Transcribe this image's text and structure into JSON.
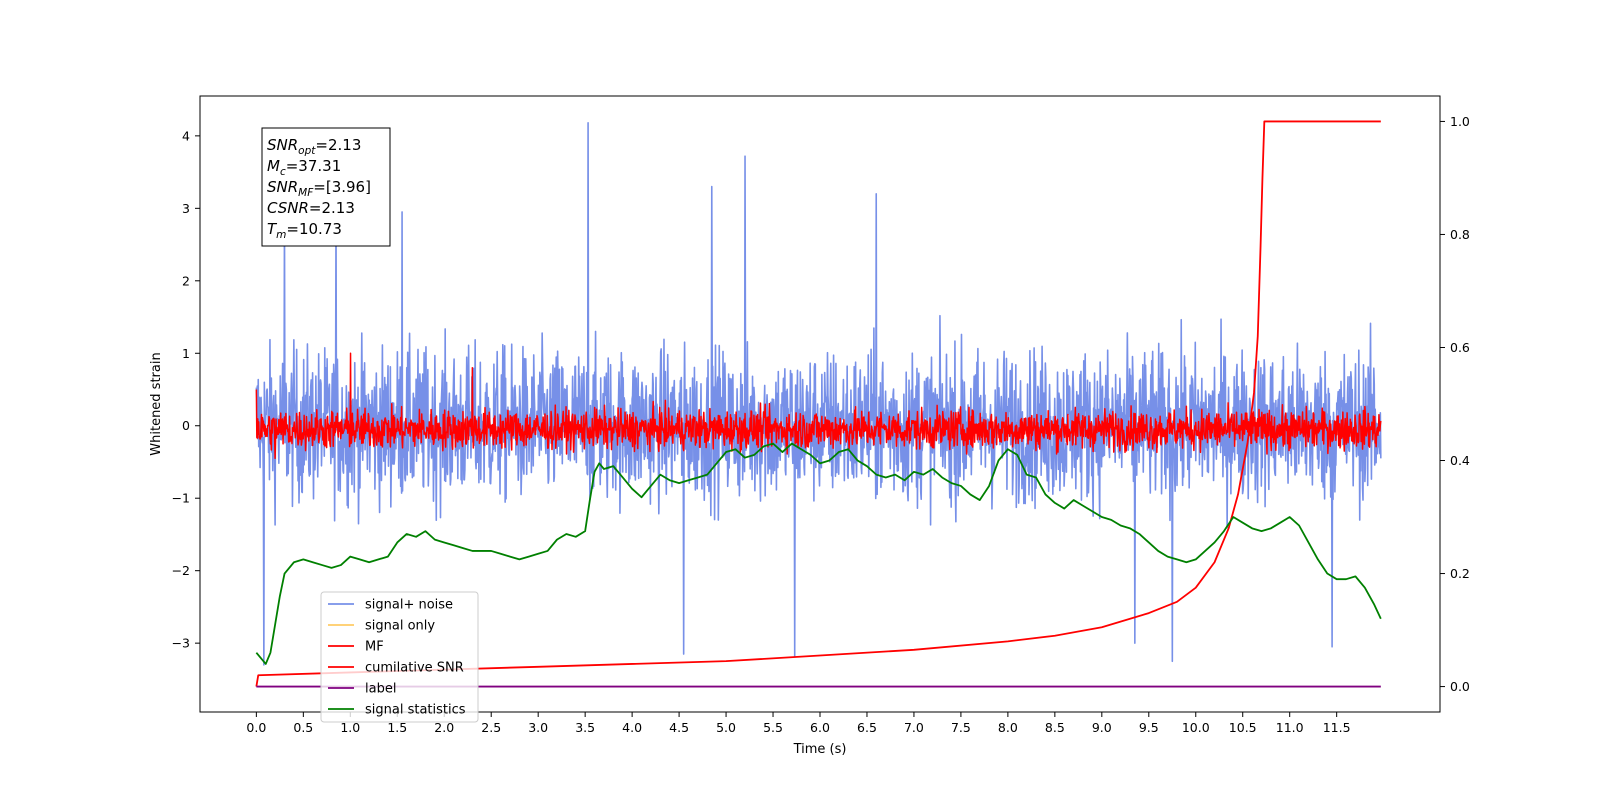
{
  "chart_data": {
    "type": "line",
    "title": "",
    "xlabel": "Time (s)",
    "ylabel": "Whitened strain",
    "y2label": "",
    "xlim": [
      -0.6,
      12.6
    ],
    "ylim": [
      -3.95,
      4.55
    ],
    "y2lim": [
      -0.045,
      1.045
    ],
    "x_ticks": [
      "0.0",
      "0.5",
      "1.0",
      "1.5",
      "2.0",
      "2.5",
      "3.0",
      "3.5",
      "4.0",
      "4.5",
      "5.0",
      "5.5",
      "6.0",
      "6.5",
      "7.0",
      "7.5",
      "8.0",
      "8.5",
      "9.0",
      "9.5",
      "10.0",
      "10.5",
      "11.0",
      "11.5"
    ],
    "y_ticks": [
      "-3",
      "-2",
      "-1",
      "0",
      "1",
      "2",
      "3",
      "4"
    ],
    "y2_ticks": [
      "0.0",
      "0.2",
      "0.4",
      "0.6",
      "0.8",
      "1.0"
    ],
    "grid": false,
    "legend_position": "lower-left",
    "annotation": {
      "lines": [
        {
          "main": "SNR",
          "sub": "opt",
          "rest": "=2.13"
        },
        {
          "main": "M",
          "sub": "c",
          "rest": "=37.31"
        },
        {
          "main": "SNR",
          "sub": "MF",
          "rest": "=[3.96]"
        },
        {
          "main": "CSNR",
          "sub": "",
          "rest": "=2.13"
        },
        {
          "main": "T",
          "sub": "m",
          "rest": "=10.73"
        }
      ]
    },
    "series": [
      {
        "name": "signal+ noise",
        "color": "#7790e8",
        "axis": "left",
        "kind": "noise",
        "center": 0.0,
        "spread": 0.85,
        "range": [
          -3.3,
          4.2
        ],
        "extremes": [
          {
            "x": 0.08,
            "y": -3.3
          },
          {
            "x": 0.3,
            "y": 2.9
          },
          {
            "x": 0.85,
            "y": 2.9
          },
          {
            "x": 1.55,
            "y": 2.95
          },
          {
            "x": 3.53,
            "y": 4.18
          },
          {
            "x": 4.55,
            "y": -3.15
          },
          {
            "x": 4.85,
            "y": 3.3
          },
          {
            "x": 5.2,
            "y": 3.72
          },
          {
            "x": 5.73,
            "y": -3.18
          },
          {
            "x": 6.6,
            "y": 3.2
          },
          {
            "x": 9.35,
            "y": -3.0
          },
          {
            "x": 9.75,
            "y": -3.25
          },
          {
            "x": 11.45,
            "y": -3.05
          }
        ]
      },
      {
        "name": "signal only",
        "color": "#ffcc66",
        "axis": "left",
        "kind": "flat",
        "points": []
      },
      {
        "name": "MF",
        "color": "#ff0000",
        "axis": "left",
        "kind": "noise",
        "center": -0.05,
        "spread": 0.22,
        "range": [
          -0.5,
          1.0
        ],
        "extremes": [
          {
            "x": 0.0,
            "y": 0.5
          },
          {
            "x": 0.2,
            "y": -0.45
          },
          {
            "x": 1.0,
            "y": 1.0
          },
          {
            "x": 2.3,
            "y": 0.8
          }
        ]
      },
      {
        "name": "cumilative SNR",
        "color": "#ff0000",
        "axis": "right",
        "kind": "curve",
        "points": [
          [
            0.0,
            0.0
          ],
          [
            0.02,
            0.02
          ],
          [
            1.0,
            0.025
          ],
          [
            2.0,
            0.03
          ],
          [
            3.0,
            0.035
          ],
          [
            4.0,
            0.04
          ],
          [
            5.0,
            0.045
          ],
          [
            6.0,
            0.055
          ],
          [
            7.0,
            0.065
          ],
          [
            8.0,
            0.08
          ],
          [
            8.5,
            0.09
          ],
          [
            9.0,
            0.105
          ],
          [
            9.5,
            0.13
          ],
          [
            9.8,
            0.15
          ],
          [
            10.0,
            0.175
          ],
          [
            10.2,
            0.22
          ],
          [
            10.35,
            0.28
          ],
          [
            10.45,
            0.34
          ],
          [
            10.55,
            0.43
          ],
          [
            10.62,
            0.52
          ],
          [
            10.66,
            0.62
          ],
          [
            10.69,
            0.78
          ],
          [
            10.71,
            0.9
          ],
          [
            10.73,
            1.0
          ],
          [
            11.97,
            1.0
          ]
        ]
      },
      {
        "name": "label",
        "color": "#800080",
        "axis": "right",
        "kind": "curve",
        "points": [
          [
            0.0,
            0.0
          ],
          [
            11.97,
            0.0
          ]
        ]
      },
      {
        "name": "signal statistics",
        "color": "#008000",
        "axis": "right",
        "kind": "curve",
        "points": [
          [
            0.0,
            0.06
          ],
          [
            0.05,
            0.05
          ],
          [
            0.1,
            0.04
          ],
          [
            0.15,
            0.06
          ],
          [
            0.2,
            0.11
          ],
          [
            0.25,
            0.16
          ],
          [
            0.3,
            0.2
          ],
          [
            0.4,
            0.22
          ],
          [
            0.5,
            0.225
          ],
          [
            0.6,
            0.22
          ],
          [
            0.7,
            0.215
          ],
          [
            0.8,
            0.21
          ],
          [
            0.9,
            0.215
          ],
          [
            1.0,
            0.23
          ],
          [
            1.1,
            0.225
          ],
          [
            1.2,
            0.22
          ],
          [
            1.3,
            0.225
          ],
          [
            1.4,
            0.23
          ],
          [
            1.5,
            0.255
          ],
          [
            1.6,
            0.27
          ],
          [
            1.7,
            0.265
          ],
          [
            1.8,
            0.275
          ],
          [
            1.9,
            0.26
          ],
          [
            2.0,
            0.255
          ],
          [
            2.1,
            0.25
          ],
          [
            2.2,
            0.245
          ],
          [
            2.3,
            0.24
          ],
          [
            2.4,
            0.24
          ],
          [
            2.5,
            0.24
          ],
          [
            2.6,
            0.235
          ],
          [
            2.7,
            0.23
          ],
          [
            2.8,
            0.225
          ],
          [
            2.9,
            0.23
          ],
          [
            3.0,
            0.235
          ],
          [
            3.1,
            0.24
          ],
          [
            3.2,
            0.26
          ],
          [
            3.3,
            0.27
          ],
          [
            3.4,
            0.265
          ],
          [
            3.5,
            0.275
          ],
          [
            3.55,
            0.33
          ],
          [
            3.6,
            0.38
          ],
          [
            3.65,
            0.395
          ],
          [
            3.7,
            0.385
          ],
          [
            3.8,
            0.39
          ],
          [
            3.9,
            0.37
          ],
          [
            4.0,
            0.35
          ],
          [
            4.1,
            0.335
          ],
          [
            4.2,
            0.355
          ],
          [
            4.3,
            0.375
          ],
          [
            4.4,
            0.365
          ],
          [
            4.5,
            0.36
          ],
          [
            4.6,
            0.365
          ],
          [
            4.7,
            0.37
          ],
          [
            4.8,
            0.375
          ],
          [
            4.9,
            0.395
          ],
          [
            5.0,
            0.415
          ],
          [
            5.1,
            0.42
          ],
          [
            5.2,
            0.405
          ],
          [
            5.3,
            0.41
          ],
          [
            5.4,
            0.425
          ],
          [
            5.5,
            0.43
          ],
          [
            5.6,
            0.415
          ],
          [
            5.7,
            0.43
          ],
          [
            5.8,
            0.42
          ],
          [
            5.9,
            0.41
          ],
          [
            6.0,
            0.395
          ],
          [
            6.1,
            0.4
          ],
          [
            6.2,
            0.415
          ],
          [
            6.3,
            0.42
          ],
          [
            6.4,
            0.4
          ],
          [
            6.5,
            0.39
          ],
          [
            6.6,
            0.375
          ],
          [
            6.7,
            0.37
          ],
          [
            6.8,
            0.375
          ],
          [
            6.9,
            0.365
          ],
          [
            7.0,
            0.38
          ],
          [
            7.1,
            0.375
          ],
          [
            7.2,
            0.385
          ],
          [
            7.3,
            0.37
          ],
          [
            7.4,
            0.36
          ],
          [
            7.5,
            0.355
          ],
          [
            7.6,
            0.34
          ],
          [
            7.7,
            0.33
          ],
          [
            7.8,
            0.355
          ],
          [
            7.9,
            0.4
          ],
          [
            8.0,
            0.42
          ],
          [
            8.1,
            0.41
          ],
          [
            8.2,
            0.375
          ],
          [
            8.3,
            0.37
          ],
          [
            8.4,
            0.34
          ],
          [
            8.5,
            0.325
          ],
          [
            8.6,
            0.315
          ],
          [
            8.7,
            0.33
          ],
          [
            8.8,
            0.32
          ],
          [
            8.9,
            0.31
          ],
          [
            9.0,
            0.3
          ],
          [
            9.1,
            0.295
          ],
          [
            9.2,
            0.285
          ],
          [
            9.3,
            0.28
          ],
          [
            9.4,
            0.27
          ],
          [
            9.5,
            0.255
          ],
          [
            9.6,
            0.24
          ],
          [
            9.7,
            0.23
          ],
          [
            9.8,
            0.225
          ],
          [
            9.9,
            0.22
          ],
          [
            10.0,
            0.225
          ],
          [
            10.1,
            0.24
          ],
          [
            10.2,
            0.255
          ],
          [
            10.3,
            0.275
          ],
          [
            10.4,
            0.3
          ],
          [
            10.5,
            0.29
          ],
          [
            10.6,
            0.28
          ],
          [
            10.7,
            0.275
          ],
          [
            10.8,
            0.28
          ],
          [
            10.9,
            0.29
          ],
          [
            11.0,
            0.3
          ],
          [
            11.1,
            0.285
          ],
          [
            11.2,
            0.255
          ],
          [
            11.3,
            0.225
          ],
          [
            11.4,
            0.2
          ],
          [
            11.5,
            0.19
          ],
          [
            11.6,
            0.19
          ],
          [
            11.7,
            0.195
          ],
          [
            11.8,
            0.175
          ],
          [
            11.9,
            0.145
          ],
          [
            11.97,
            0.12
          ]
        ]
      }
    ]
  }
}
